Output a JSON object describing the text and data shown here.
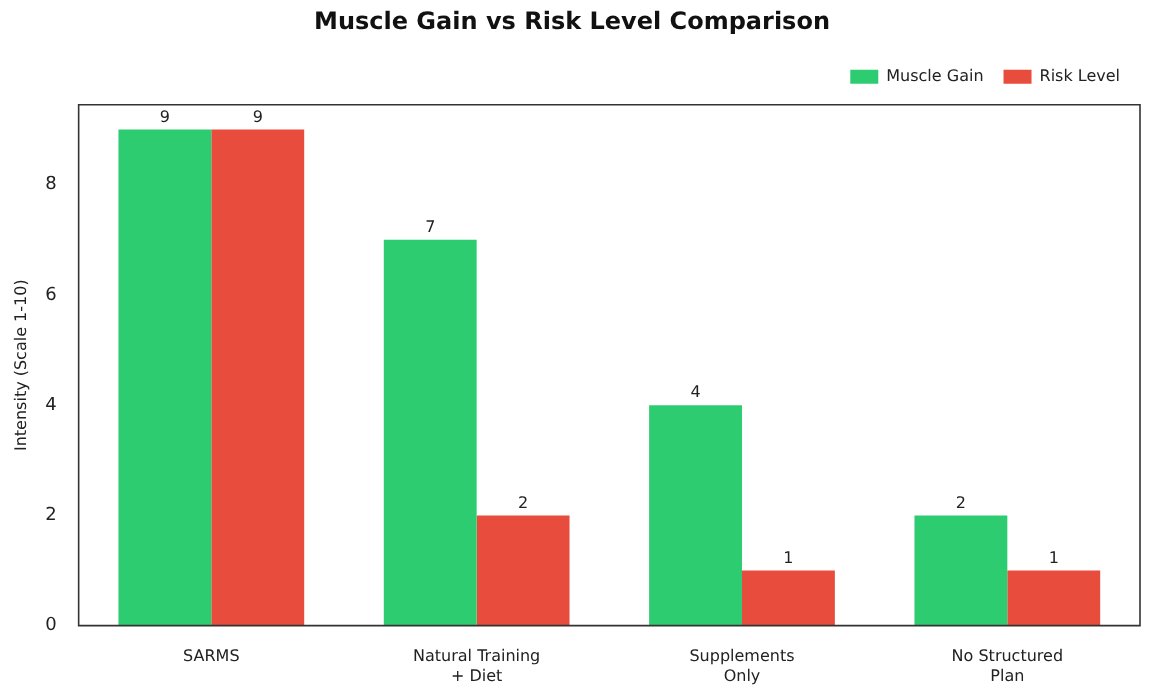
{
  "chart_data": {
    "type": "bar",
    "title": "Muscle Gain vs Risk Level Comparison",
    "ylabel": "Intensity (Scale 1-10)",
    "categories": [
      "SARMS",
      "Natural Training\n+ Diet",
      "Supplements\nOnly",
      "No Structured\nPlan"
    ],
    "series": [
      {
        "name": "Muscle Gain",
        "color": "#2ecc71",
        "values": [
          9,
          7,
          4,
          2
        ]
      },
      {
        "name": "Risk Level",
        "color": "#e74c3c",
        "values": [
          9,
          2,
          1,
          1
        ]
      }
    ],
    "ylim": [
      0,
      9.45
    ],
    "yticks": [
      0,
      2,
      4,
      6,
      8
    ],
    "grid": false,
    "legend": "top right",
    "data_labels": true
  }
}
